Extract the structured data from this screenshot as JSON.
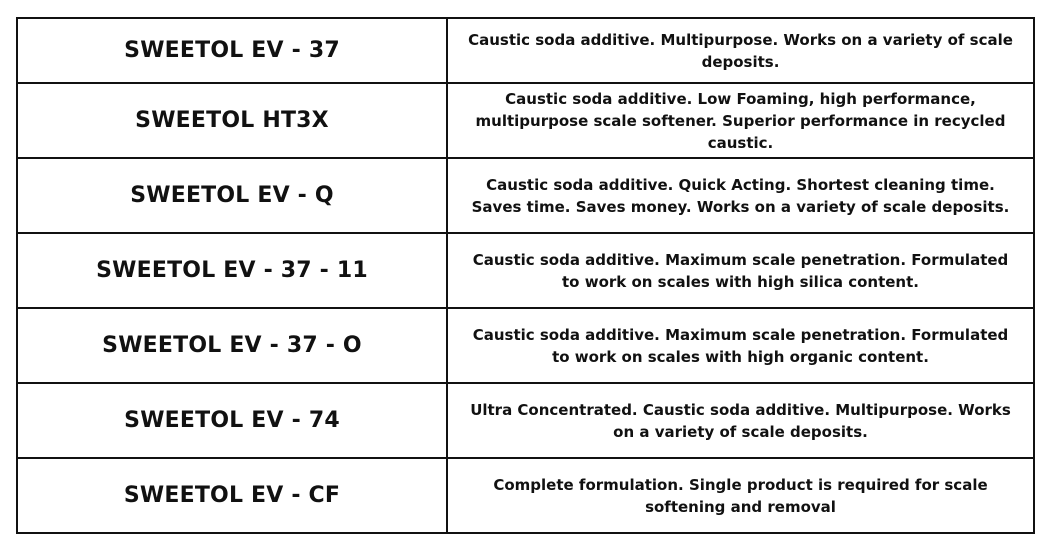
{
  "products": [
    {
      "name": "SWEETOL EV - 37",
      "description": "Caustic soda additive. Multipurpose. Works on a variety of scale deposits."
    },
    {
      "name": "SWEETOL HT3X",
      "description": "Caustic soda additive. Low Foaming, high performance, multipurpose scale softener. Superior performance in recycled caustic."
    },
    {
      "name": "SWEETOL EV - Q",
      "description": "Caustic soda additive. Quick Acting. Shortest cleaning time. Saves time. Saves money. Works on a variety of scale deposits."
    },
    {
      "name": "SWEETOL EV - 37 - 11",
      "description": "Caustic soda additive. Maximum scale penetration. Formulated to work on scales with high silica content."
    },
    {
      "name": "SWEETOL EV - 37 - O",
      "description": "Caustic soda additive. Maximum scale penetration. Formulated to work on scales with high organic content."
    },
    {
      "name": "SWEETOL EV - 74",
      "description": "Ultra Concentrated. Caustic soda additive. Multipurpose. Works on a variety of scale deposits."
    },
    {
      "name": "SWEETOL EV - CF",
      "description": "Complete formulation. Single product is required for scale softening and removal"
    }
  ]
}
